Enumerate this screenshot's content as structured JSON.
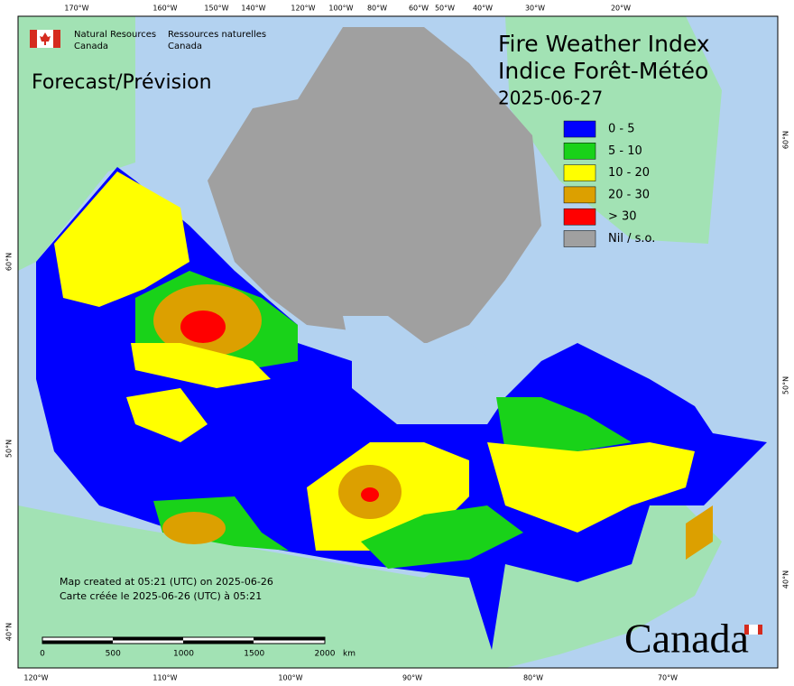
{
  "agency": {
    "en": [
      "Natural Resources",
      "Canada"
    ],
    "fr": [
      "Ressources naturelles",
      "Canada"
    ]
  },
  "title": [
    "Fire Weather Index",
    "Indice Forêt-Météo"
  ],
  "date": "2025-06-27",
  "forecast_label": "Forecast/Prévision",
  "legend": [
    {
      "label": "0 - 5",
      "color": "#0000ff"
    },
    {
      "label": "5 - 10",
      "color": "#19d219"
    },
    {
      "label": "10 - 20",
      "color": "#ffff00"
    },
    {
      "label": "20 - 30",
      "color": "#dca000"
    },
    {
      "label": "> 30",
      "color": "#ff0000"
    },
    {
      "label": "Nil / s.o.",
      "color": "#a0a0a0"
    }
  ],
  "top_longitudes": [
    "170°W",
    "160°W",
    "150°W",
    "140°W",
    "120°W",
    "100°W",
    "80°W",
    "60°W",
    "50°W",
    "40°W",
    "30°W",
    "20°W"
  ],
  "bottom_longitudes": [
    "120°W",
    "110°W",
    "100°W",
    "90°W",
    "80°W",
    "70°W"
  ],
  "left_latitudes": [
    "60°N",
    "50°N",
    "40°N"
  ],
  "right_latitudes": [
    "60°N",
    "50°N",
    "40°N"
  ],
  "scale": {
    "labels": [
      "0",
      "500",
      "1000",
      "1500",
      "2000"
    ],
    "unit": "km"
  },
  "footer": [
    "Map created at 05:21 (UTC) on 2025-06-26",
    "Carte créée le 2025-06-26 (UTC) à 05:21"
  ],
  "wordmark": "Canada"
}
